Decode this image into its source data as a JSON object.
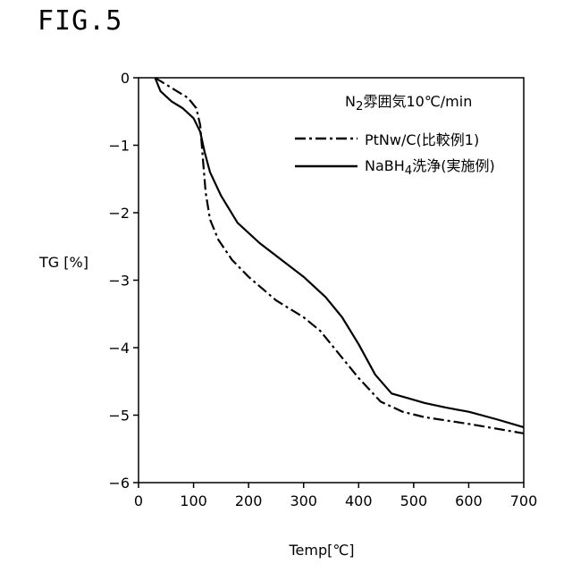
{
  "figure_label": "FIG.5",
  "chart_data": {
    "type": "line",
    "xlabel": "Temp[℃]",
    "ylabel": "TG [%]",
    "xlim": [
      0,
      700
    ],
    "ylim": [
      -6,
      0
    ],
    "xticks": [
      "0",
      "100",
      "200",
      "300",
      "400",
      "500",
      "600",
      "700"
    ],
    "yticks": [
      "0",
      "−1",
      "−2",
      "−3",
      "−4",
      "−5",
      "−6"
    ],
    "grid": false,
    "legend_placement": "top-right",
    "condition": {
      "prefix": "N",
      "subscript": "2",
      "suffix": "雰囲気10℃/min"
    },
    "series": [
      {
        "name": "PtNw/C(比較例1)",
        "style": "dash-dot",
        "color": "#000000",
        "x": [
          30,
          60,
          90,
          105,
          112,
          117,
          122,
          130,
          145,
          170,
          200,
          250,
          300,
          330,
          360,
          400,
          440,
          480,
          520,
          600,
          650,
          700
        ],
        "y": [
          0,
          -0.15,
          -0.3,
          -0.45,
          -0.7,
          -1.2,
          -1.7,
          -2.1,
          -2.4,
          -2.7,
          -2.95,
          -3.3,
          -3.55,
          -3.75,
          -4.05,
          -4.45,
          -4.8,
          -4.95,
          -5.03,
          -5.13,
          -5.2,
          -5.27
        ]
      },
      {
        "name": "NaBH",
        "name_subscript": "4",
        "name_suffix": "洗浄(実施例)",
        "style": "solid",
        "color": "#000000",
        "x": [
          30,
          40,
          60,
          80,
          100,
          112,
          120,
          130,
          150,
          180,
          220,
          260,
          300,
          340,
          370,
          400,
          430,
          460,
          490,
          520,
          560,
          600,
          650,
          700
        ],
        "y": [
          0,
          -0.2,
          -0.35,
          -0.45,
          -0.6,
          -0.8,
          -1.1,
          -1.4,
          -1.75,
          -2.15,
          -2.45,
          -2.7,
          -2.95,
          -3.25,
          -3.55,
          -3.95,
          -4.4,
          -4.68,
          -4.75,
          -4.82,
          -4.89,
          -4.95,
          -5.06,
          -5.18
        ]
      }
    ]
  }
}
